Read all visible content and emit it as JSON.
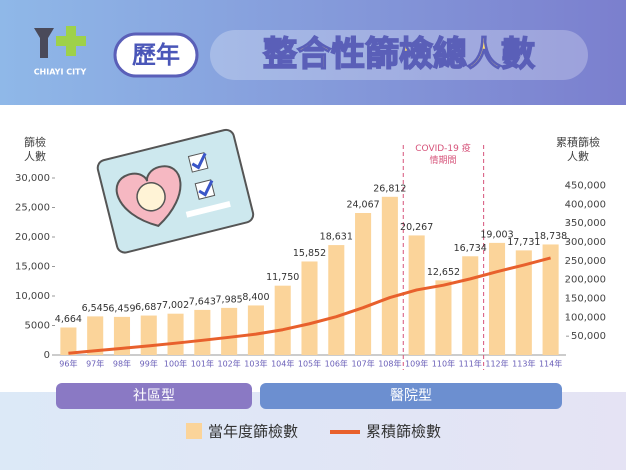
{
  "logo_text": "CHIAYI CITY",
  "chart_data": {
    "type": "bar",
    "title_tag": "歷年",
    "title": "整合性篩檢總人數",
    "y_label": "篩檢人數",
    "y2_label": "累積篩檢人數",
    "annotation": "COVID-19 疫情期間",
    "groups": [
      "社區型",
      "醫院型"
    ],
    "categories": [
      "96年",
      "97年",
      "98年",
      "99年",
      "100年",
      "101年",
      "102年",
      "103年",
      "104年",
      "105年",
      "106年",
      "107年",
      "108年",
      "109年",
      "110年",
      "111年",
      "112年",
      "113年",
      "114年"
    ],
    "series": [
      {
        "name": "當年度篩檢數",
        "color": "#fbd49a",
        "values": [
          4664,
          6545,
          6459,
          6687,
          7002,
          7643,
          7985,
          8400,
          11750,
          15852,
          18631,
          24067,
          26812,
          20267,
          12652,
          16734,
          19003,
          17731,
          18738
        ],
        "value_labels": [
          "4,664",
          "6,545",
          "6,459",
          "6,687",
          "7,002",
          "7,643",
          "7,985",
          "8,400",
          "11,750",
          "15,852",
          "18,631",
          "24,067",
          "26,812",
          "20,267",
          "12,652",
          "16,734",
          "19,003",
          "17,731",
          "18,738"
        ]
      },
      {
        "name": "累積篩檢數",
        "color": "#e8602c",
        "axis": "y2",
        "values": [
          4664,
          11209,
          17668,
          24355,
          31357,
          39000,
          46985,
          55385,
          67135,
          82987,
          101618,
          125685,
          152497,
          172764,
          185416,
          202150,
          221153,
          238884,
          257622
        ]
      }
    ],
    "ylim": [
      0,
      30000
    ],
    "yticks": [
      0,
      {
        "value": 5000,
        "label": "5000"
      },
      {
        "value": 10000,
        "label": "10,000"
      },
      {
        "value": 15000,
        "label": "15,000"
      },
      {
        "value": 20000,
        "label": "20,000"
      },
      {
        "value": 25000,
        "label": "25,000"
      },
      {
        "value": 30000,
        "label": "30,000"
      }
    ],
    "y2lim": [
      0,
      470000
    ],
    "y2ticks": [
      {
        "value": 50000,
        "label": "50,000"
      },
      {
        "value": 100000,
        "label": "100,000"
      },
      {
        "value": 150000,
        "label": "150,000"
      },
      {
        "value": 200000,
        "label": "200,000"
      },
      {
        "value": 250000,
        "label": "250,000"
      },
      {
        "value": 300000,
        "label": "300,000"
      },
      {
        "value": 350000,
        "label": "350,000"
      },
      {
        "value": 400000,
        "label": "400,000"
      },
      {
        "value": 450000,
        "label": "450,000"
      }
    ],
    "grid": false
  }
}
